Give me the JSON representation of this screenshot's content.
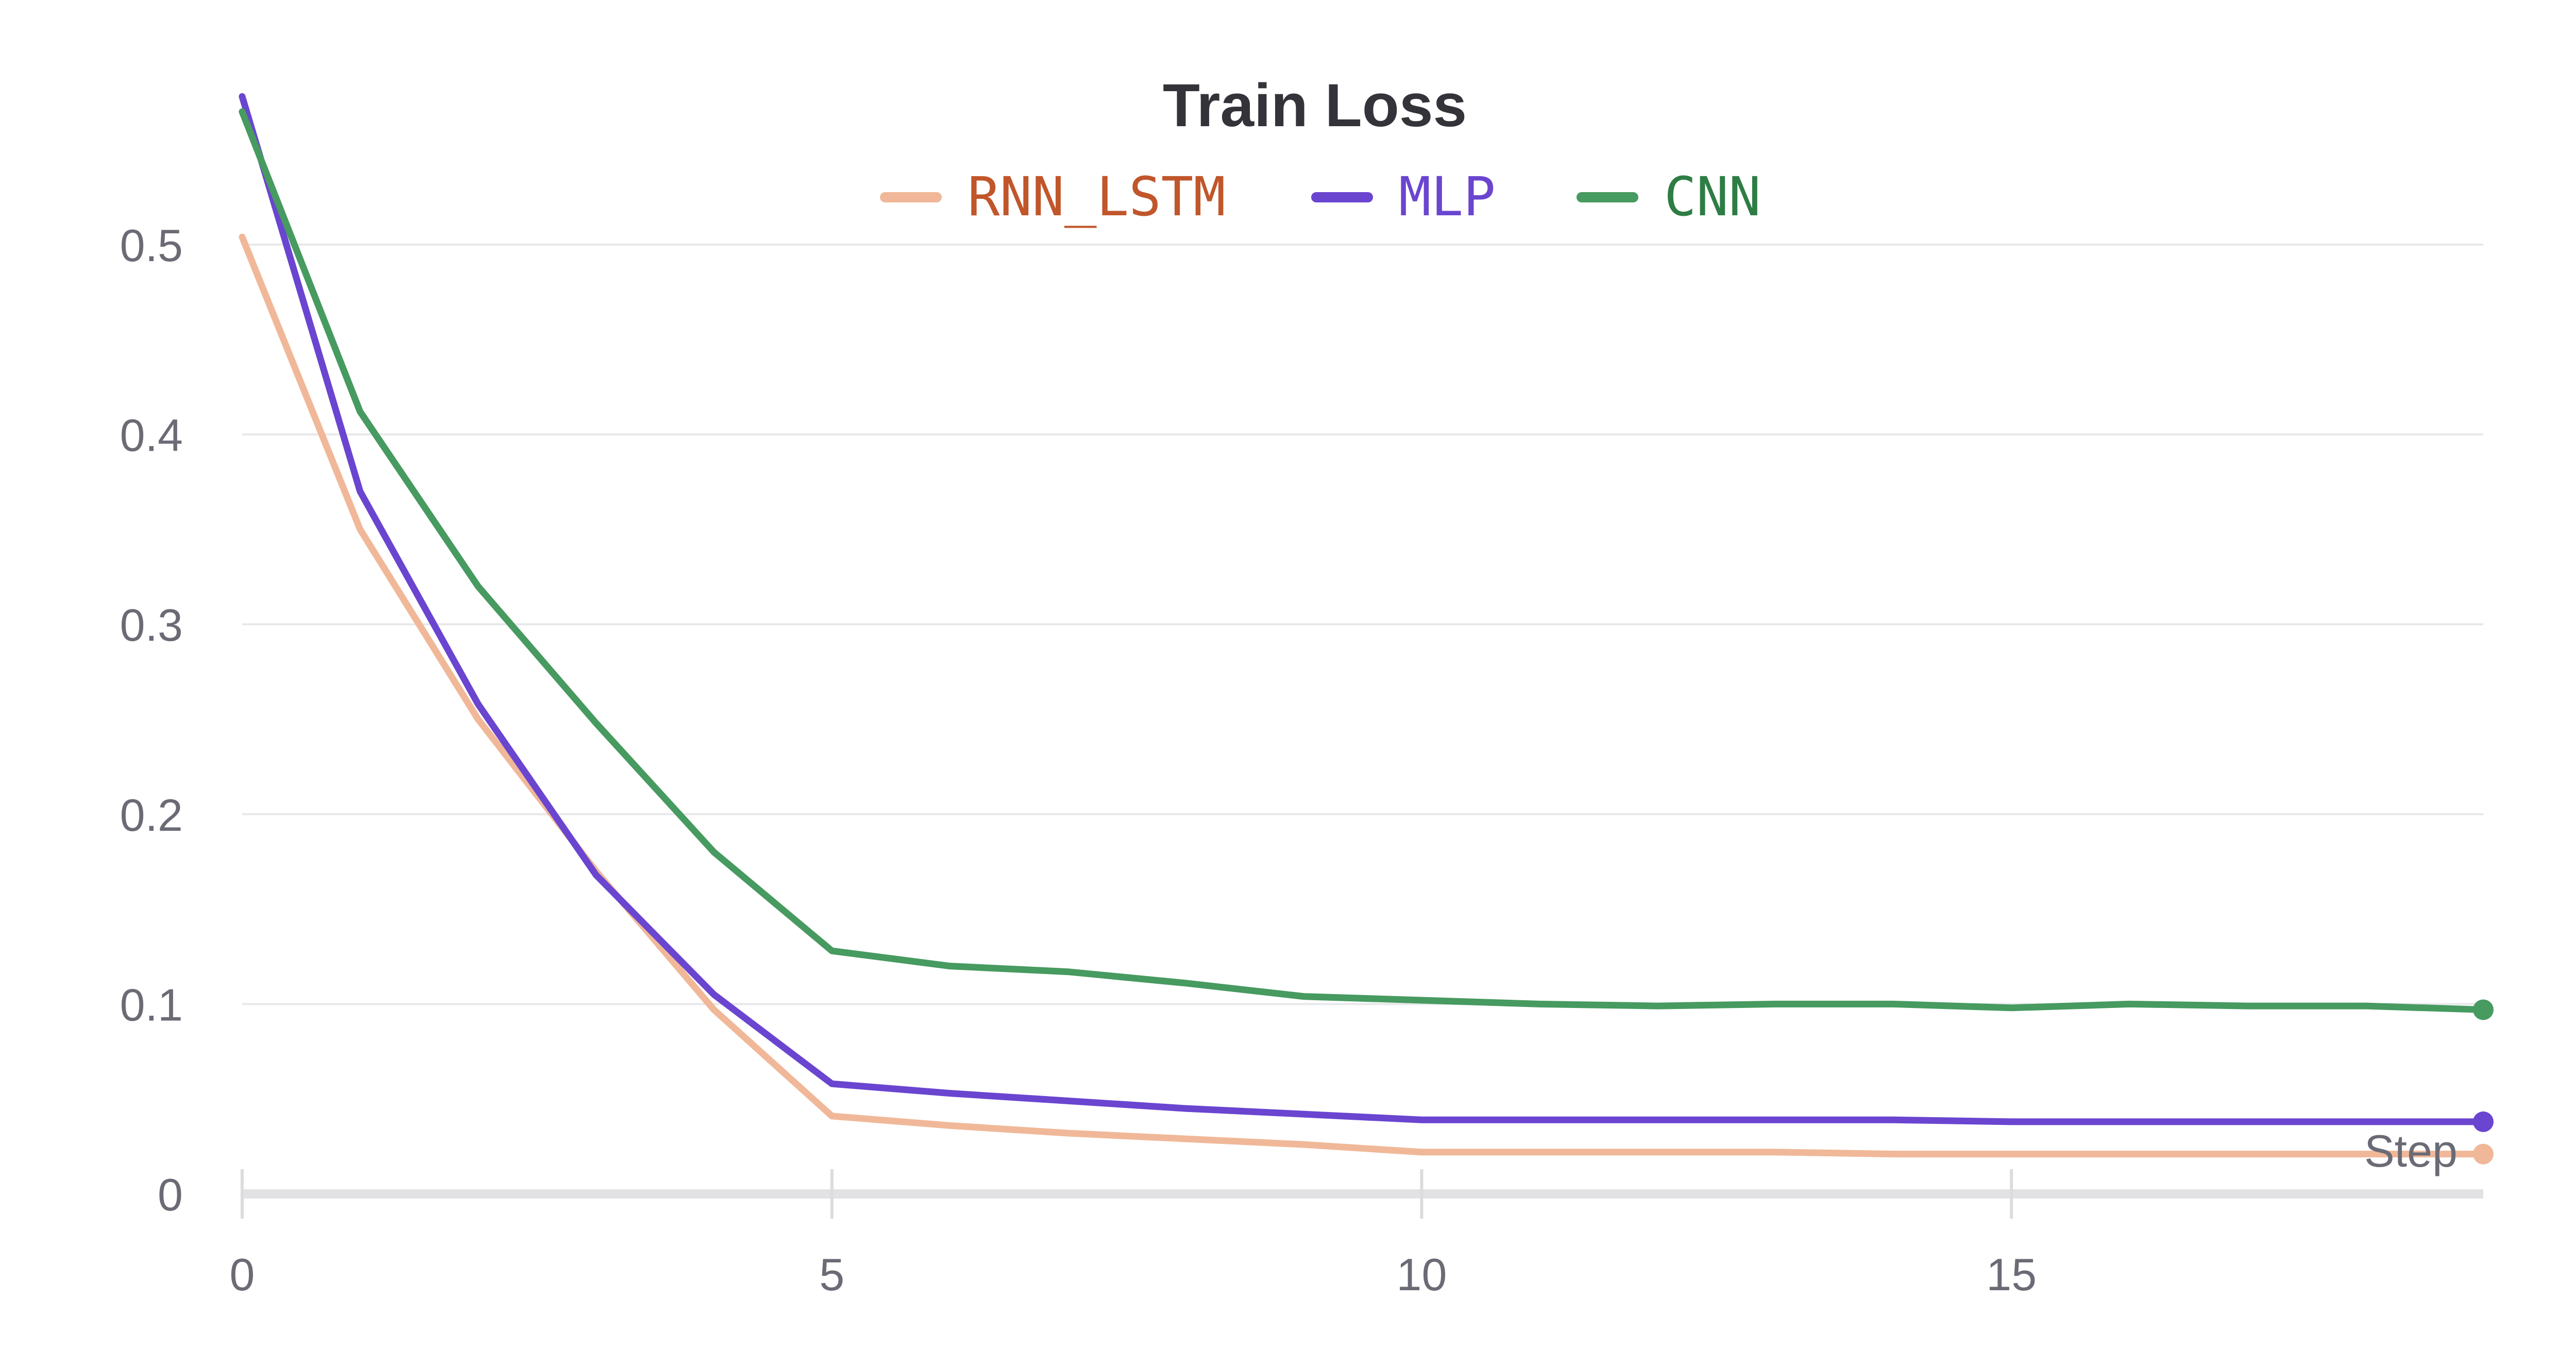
{
  "chart_data": {
    "type": "line",
    "title": "Train Loss",
    "xlabel": "Step",
    "ylabel": "",
    "xlim": [
      0,
      19
    ],
    "ylim": [
      0,
      0.58
    ],
    "x_ticks": [
      0,
      5,
      10,
      15
    ],
    "y_ticks": [
      0,
      0.1,
      0.2,
      0.3,
      0.4,
      0.5
    ],
    "grid": true,
    "legend_position": "top-center",
    "x": [
      0,
      1,
      2,
      3,
      4,
      5,
      6,
      7,
      8,
      9,
      10,
      11,
      12,
      13,
      14,
      15,
      16,
      17,
      18,
      19
    ],
    "series": [
      {
        "name": "RNN_LSTM",
        "color": "#f0b898",
        "label_color": "#c0562a",
        "values": [
          0.504,
          0.35,
          0.25,
          0.17,
          0.097,
          0.041,
          0.036,
          0.032,
          0.029,
          0.026,
          0.022,
          0.022,
          0.022,
          0.022,
          0.021,
          0.021,
          0.021,
          0.021,
          0.021,
          0.021
        ]
      },
      {
        "name": "MLP",
        "color": "#6a45d0",
        "label_color": "#6a45d0",
        "values": [
          0.578,
          0.37,
          0.258,
          0.168,
          0.105,
          0.058,
          0.053,
          0.049,
          0.045,
          0.042,
          0.039,
          0.039,
          0.039,
          0.039,
          0.039,
          0.038,
          0.038,
          0.038,
          0.038,
          0.038
        ]
      },
      {
        "name": "CNN",
        "color": "#479a60",
        "label_color": "#2e7d45",
        "values": [
          0.57,
          0.412,
          0.32,
          0.248,
          0.18,
          0.128,
          0.12,
          0.117,
          0.111,
          0.104,
          0.102,
          0.1,
          0.099,
          0.1,
          0.1,
          0.098,
          0.1,
          0.099,
          0.099,
          0.097
        ]
      }
    ]
  }
}
